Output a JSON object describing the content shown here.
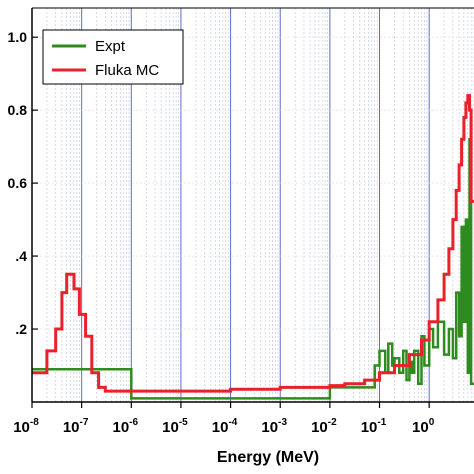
{
  "chart_data": {
    "type": "line",
    "xlabel": "Energy (MeV)",
    "x_scale": "log",
    "xlim": [
      1e-08,
      8
    ],
    "ylim": [
      0,
      1.08
    ],
    "x_ticks": [
      {
        "base": "10",
        "exp": "-8"
      },
      {
        "base": "10",
        "exp": "-7"
      },
      {
        "base": "10",
        "exp": "-6"
      },
      {
        "base": "10",
        "exp": "-5"
      },
      {
        "base": "10",
        "exp": "-4"
      },
      {
        "base": "10",
        "exp": "-3"
      },
      {
        "base": "10",
        "exp": "-2"
      },
      {
        "base": "10",
        "exp": "-1"
      },
      {
        "base": "10",
        "exp": "0"
      }
    ],
    "y_ticks": [
      ".2",
      ".4",
      "0.6",
      "0.8",
      "1.0"
    ],
    "y_tick_values": [
      0.2,
      0.4,
      0.6,
      0.8,
      1.0
    ],
    "grid": true,
    "legend_position": "top-left",
    "series": [
      {
        "name": "Expt",
        "color": "#2e8b1e",
        "step": true,
        "x": [
          1e-08,
          1e-06,
          1e-06,
          0.01,
          0.01,
          0.08,
          0.1,
          0.13,
          0.15,
          0.18,
          0.2,
          0.25,
          0.3,
          0.35,
          0.4,
          0.45,
          0.5,
          0.6,
          0.7,
          0.8,
          1.0,
          1.2,
          1.5,
          2.0,
          2.5,
          3.0,
          3.5,
          4.0,
          4.5,
          5.0,
          5.5,
          6.0,
          6.5,
          7.0,
          8.0
        ],
        "y": [
          0.09,
          0.09,
          0.01,
          0.01,
          0.04,
          0.1,
          0.14,
          0.08,
          0.16,
          0.1,
          0.12,
          0.08,
          0.14,
          0.06,
          0.11,
          0.08,
          0.14,
          0.05,
          0.18,
          0.1,
          0.2,
          0.15,
          0.22,
          0.13,
          0.2,
          0.12,
          0.3,
          0.18,
          0.48,
          0.22,
          0.5,
          0.08,
          0.72,
          0.05,
          0.05
        ]
      },
      {
        "name": "Fluka MC",
        "color": "#e8212a",
        "step": true,
        "x": [
          1e-08,
          2e-08,
          3e-08,
          4e-08,
          5e-08,
          7e-08,
          9e-08,
          1.2e-07,
          1.6e-07,
          2.2e-07,
          3e-07,
          5e-07,
          1e-06,
          2e-06,
          5e-06,
          1e-05,
          0.0001,
          0.001,
          0.01,
          0.02,
          0.05,
          0.1,
          0.2,
          0.4,
          0.7,
          1.0,
          1.5,
          2.0,
          2.5,
          3.0,
          3.5,
          4.0,
          4.5,
          5.0,
          5.5,
          6.0,
          6.5,
          7.0,
          8.0
        ],
        "y": [
          0.08,
          0.14,
          0.2,
          0.3,
          0.35,
          0.31,
          0.24,
          0.18,
          0.08,
          0.04,
          0.03,
          0.03,
          0.03,
          0.03,
          0.03,
          0.03,
          0.035,
          0.04,
          0.045,
          0.05,
          0.06,
          0.08,
          0.1,
          0.13,
          0.17,
          0.22,
          0.28,
          0.35,
          0.42,
          0.5,
          0.58,
          0.65,
          0.72,
          0.78,
          0.82,
          0.84,
          0.8,
          0.55,
          0.55
        ]
      }
    ]
  }
}
